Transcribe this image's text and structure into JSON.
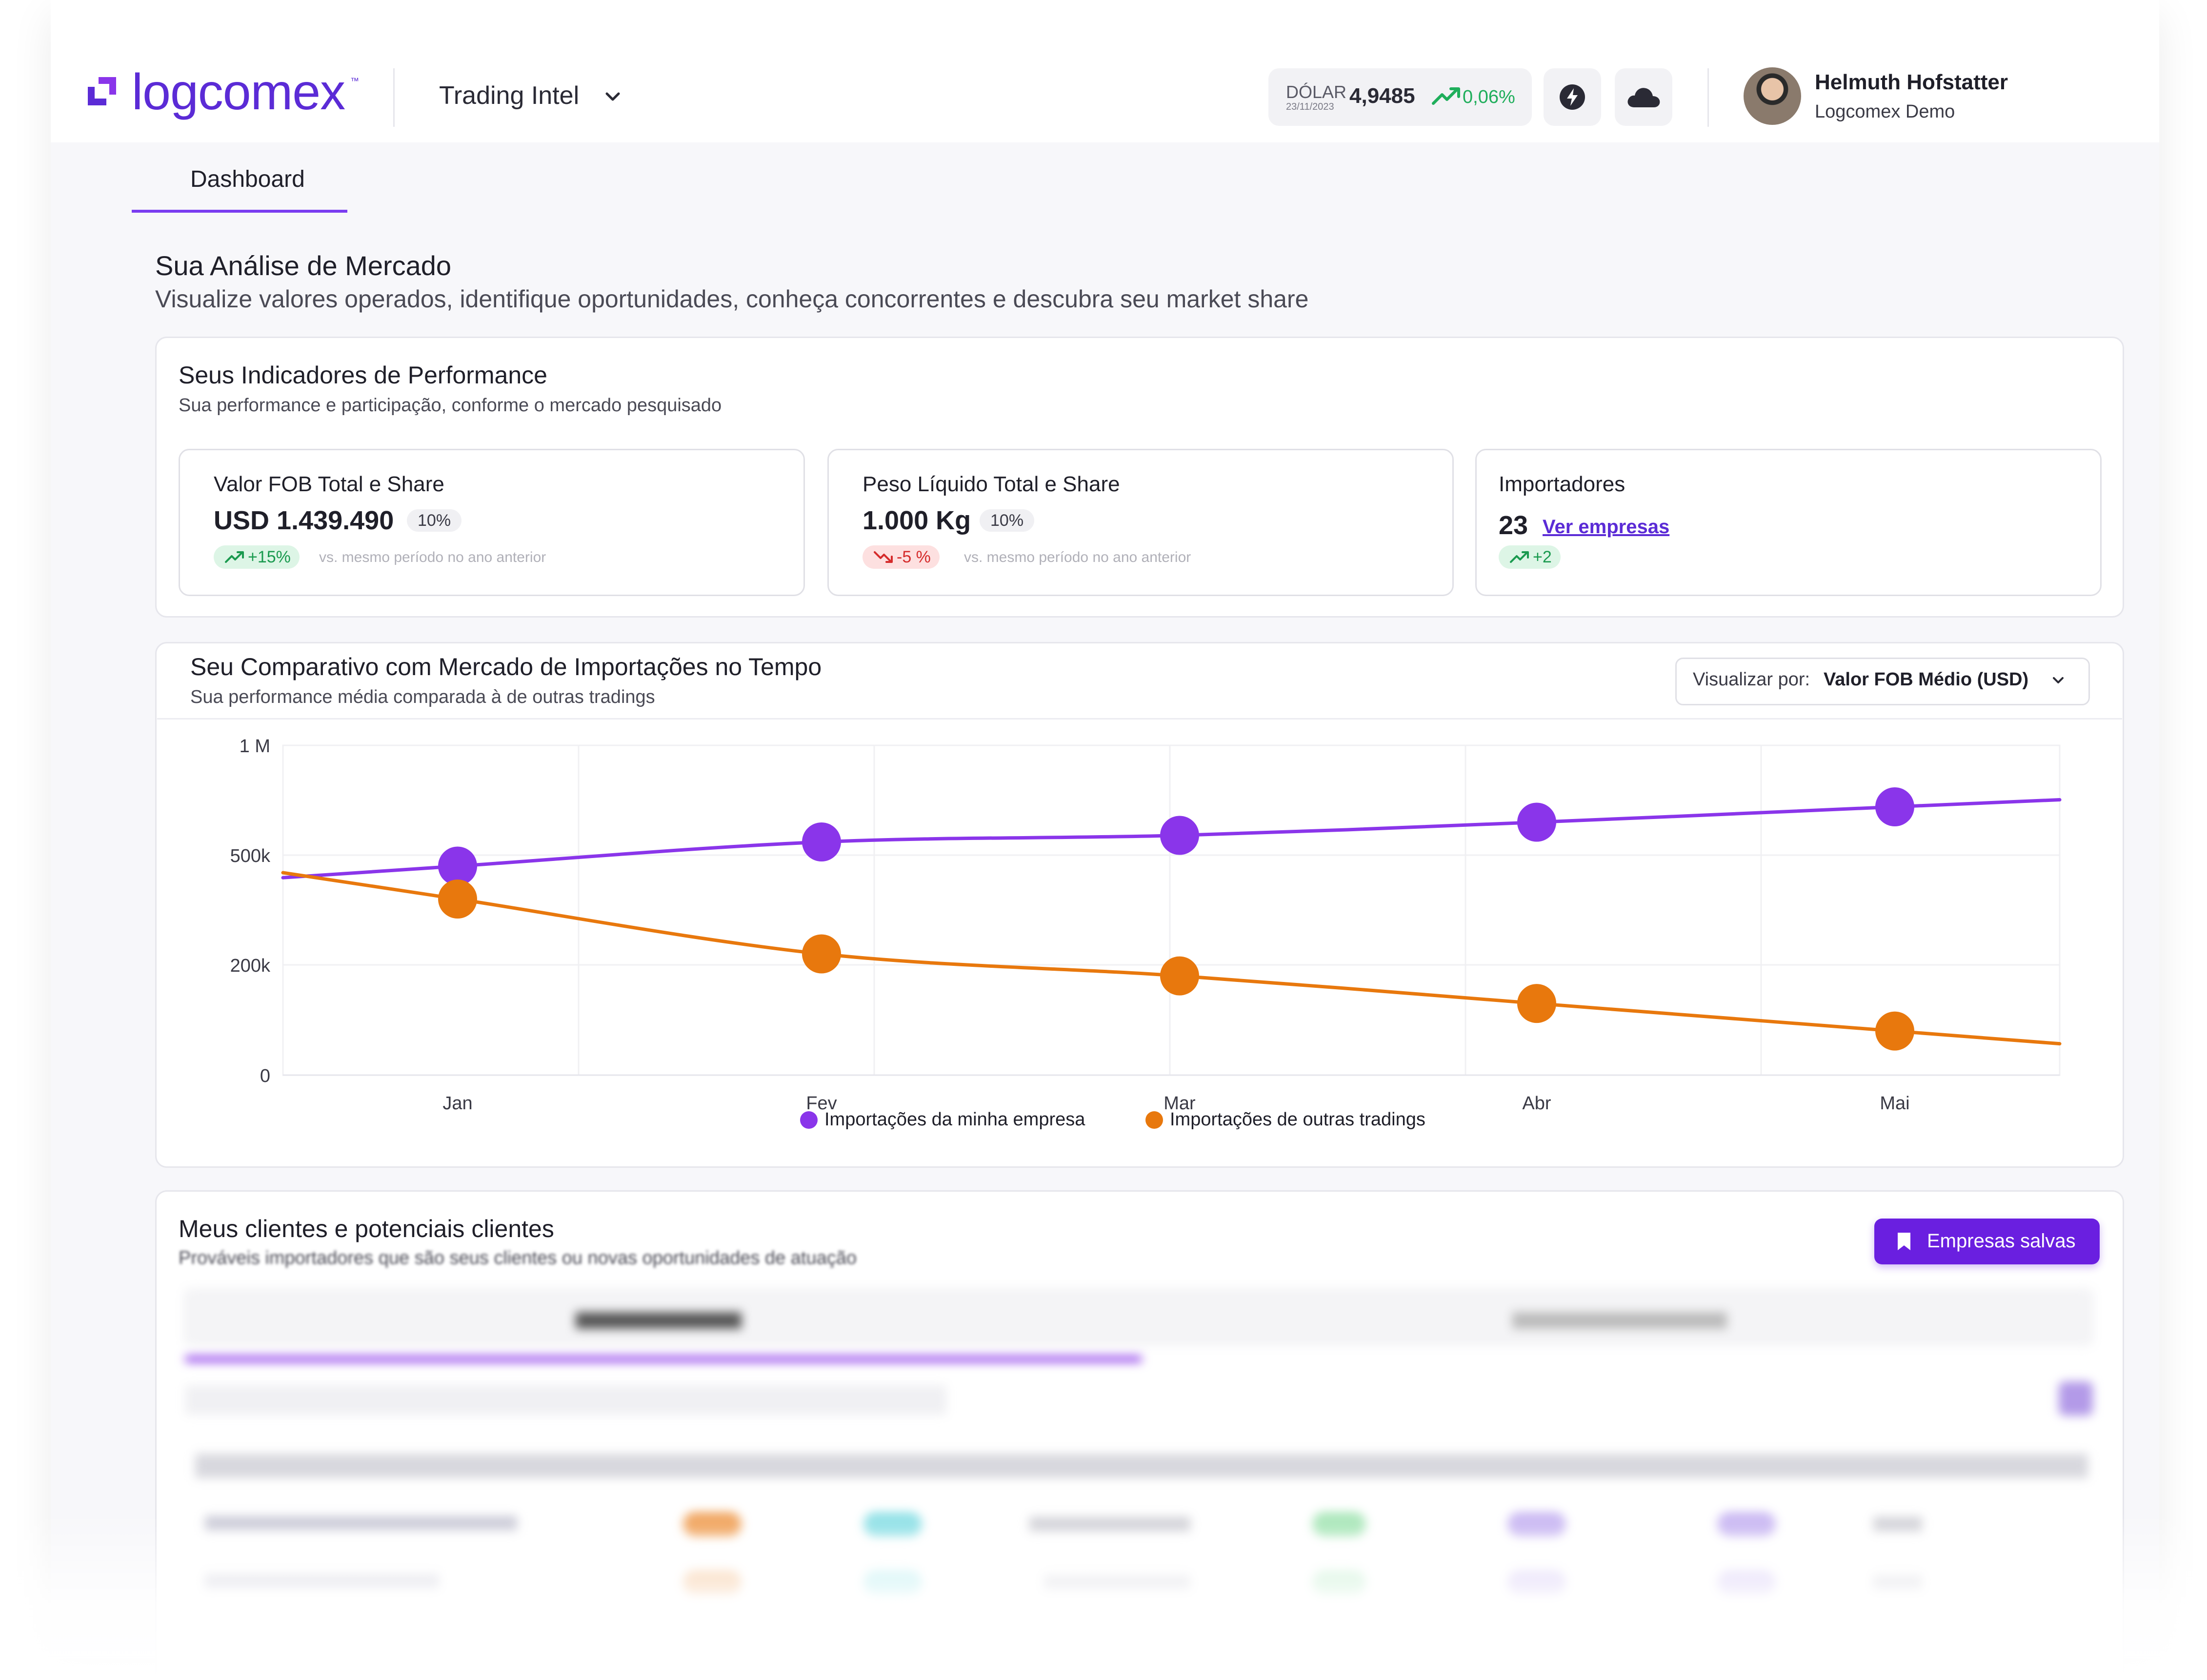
{
  "header": {
    "logo_text": "logcomex",
    "logo_tm": "™",
    "product": "Trading Intel",
    "dollar": {
      "label": "DÓLAR",
      "date": "23/11/2023",
      "value": "4,9485",
      "change": "0,06%"
    },
    "user": {
      "name": "Helmuth Hofstatter",
      "org": "Logcomex Demo"
    }
  },
  "tabs": {
    "dashboard": "Dashboard"
  },
  "section": {
    "title": "Sua Análise de Mercado",
    "subtitle": "Visualize valores operados, identifique oportunidades, conheça concorrentes e descubra seu market share"
  },
  "performance": {
    "title": "Seus Indicadores de Performance",
    "subtitle": "Sua performance e participação, conforme o mercado pesquisado",
    "fob": {
      "title": "Valor FOB Total e Share",
      "value": "USD 1.439.490",
      "share": "10%",
      "change": "+15%",
      "vs": "vs. mesmo período no ano anterior"
    },
    "weight": {
      "title": "Peso Líquido Total e Share",
      "value": "1.000 Kg",
      "share": "10%",
      "change": "-5 %",
      "vs": "vs. mesmo período no ano anterior"
    },
    "importers": {
      "title": "Importadores",
      "value": "23",
      "link": "Ver empresas",
      "change": "+2"
    }
  },
  "comparison": {
    "title": "Seu Comparativo com Mercado de Importações no Tempo",
    "subtitle": "Sua performance média comparada à de outras tradings",
    "view_prefix": "Visualizar por:",
    "view_value": "Valor FOB Médio (USD)"
  },
  "chart_data": {
    "type": "line",
    "categories": [
      "Jan",
      "Fev",
      "Mar",
      "Abr",
      "Mai"
    ],
    "y_ticks": [
      {
        "label": "1 M",
        "value": 1000000
      },
      {
        "label": "500k",
        "value": 500000
      },
      {
        "label": "200k",
        "value": 200000
      },
      {
        "label": "0",
        "value": 0
      }
    ],
    "series": [
      {
        "name": "Importações da minha empresa",
        "color": "#8a35ea",
        "values": [
          470000,
          560000,
          590000,
          650000,
          720000
        ]
      },
      {
        "name": "Importações de outras tradings",
        "color": "#e8780d",
        "values": [
          380000,
          230000,
          180000,
          130000,
          80000
        ]
      }
    ],
    "grid": true,
    "legend": "bottom-center"
  },
  "clients": {
    "title": "Meus clientes e potenciais clientes",
    "subtitle": "Prováveis importadores que são seus clientes ou novas oportunidades de atuação",
    "saved_button": "Empresas salvas"
  },
  "colors": {
    "accent": "#7a3cf0",
    "brand": "#5b2bd6",
    "positive": "#1fae5b",
    "negative": "#d52b2b"
  }
}
